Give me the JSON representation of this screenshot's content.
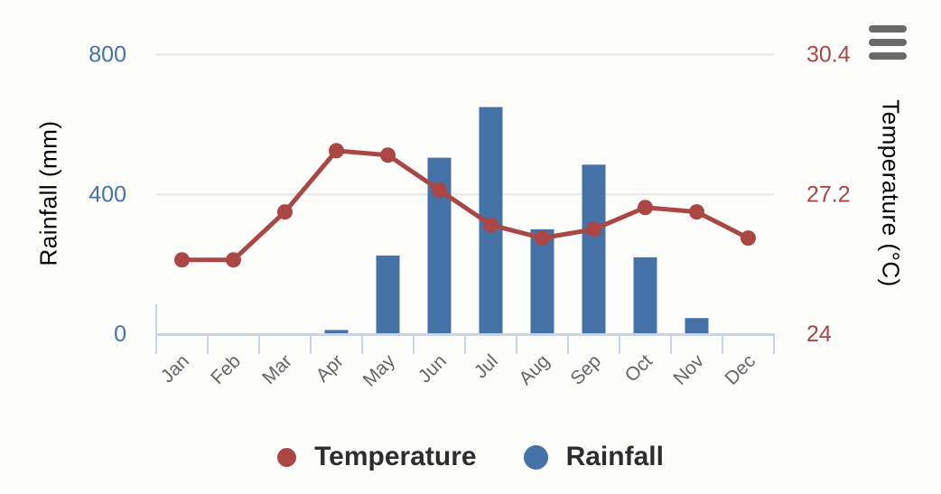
{
  "chart_data": {
    "type": "combo-column-line",
    "categories": [
      "Jan",
      "Feb",
      "Mar",
      "Apr",
      "May",
      "Jun",
      "Jul",
      "Aug",
      "Sep",
      "Oct",
      "Nov",
      "Dec"
    ],
    "series": [
      {
        "name": "Temperature",
        "type": "line",
        "axis": "right",
        "color": "#AA4643",
        "values": [
          25.7,
          25.7,
          26.8,
          28.2,
          28.1,
          27.3,
          26.5,
          26.2,
          26.4,
          26.9,
          26.8,
          26.2
        ]
      },
      {
        "name": "Rainfall",
        "type": "bar",
        "axis": "left",
        "color": "#4572A7",
        "values": [
          0,
          0,
          0,
          12,
          225,
          505,
          650,
          300,
          485,
          220,
          46,
          0
        ]
      }
    ],
    "left_axis": {
      "title": "Rainfall (mm)",
      "color": "#4572A7",
      "range": [
        0,
        800
      ],
      "ticks": [
        {
          "value": 0,
          "label": "0"
        },
        {
          "value": 400,
          "label": "400"
        },
        {
          "value": 800,
          "label": "800"
        }
      ]
    },
    "right_axis": {
      "title": "Temperature (°C)",
      "color": "#AA4643",
      "range": [
        24,
        30.4
      ],
      "ticks": [
        {
          "value": 24,
          "label": "24"
        },
        {
          "value": 27.2,
          "label": "27.2"
        },
        {
          "value": 30.4,
          "label": "30.4"
        }
      ]
    },
    "xlabel": "",
    "grid": "horizontal-only",
    "legend_position": "bottom-center",
    "x_label_rotation": -45
  },
  "styles": {
    "gridline_color": "#e7e7e7",
    "axis_line_color": "#c9d4e8",
    "x_label_color": "#666666",
    "menu_icon_color": "#696969",
    "background": "#fdfdfc"
  },
  "menu": {
    "icon": "hamburger-menu-icon"
  }
}
